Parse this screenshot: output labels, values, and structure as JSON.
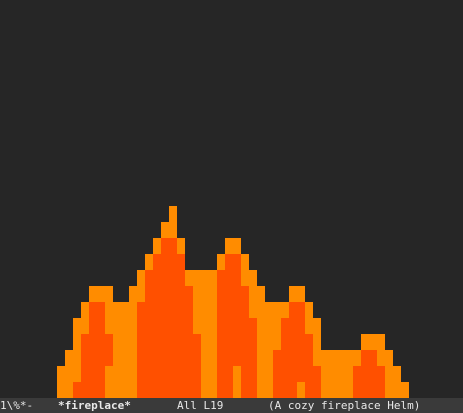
{
  "window": {
    "background_color": "#262626"
  },
  "fireplace": {
    "buffer_name": "*fireplace*",
    "colors": {
      "outer_flame": "#ff8c00",
      "inner_flame": "#ff5000"
    },
    "flame_icon": "pixel-flame-icon"
  },
  "mode_line": {
    "status": "1\\%*-",
    "buffer_name": "*fireplace*",
    "position": "All L19",
    "modes": "(A cozy fireplace Helm)"
  }
}
